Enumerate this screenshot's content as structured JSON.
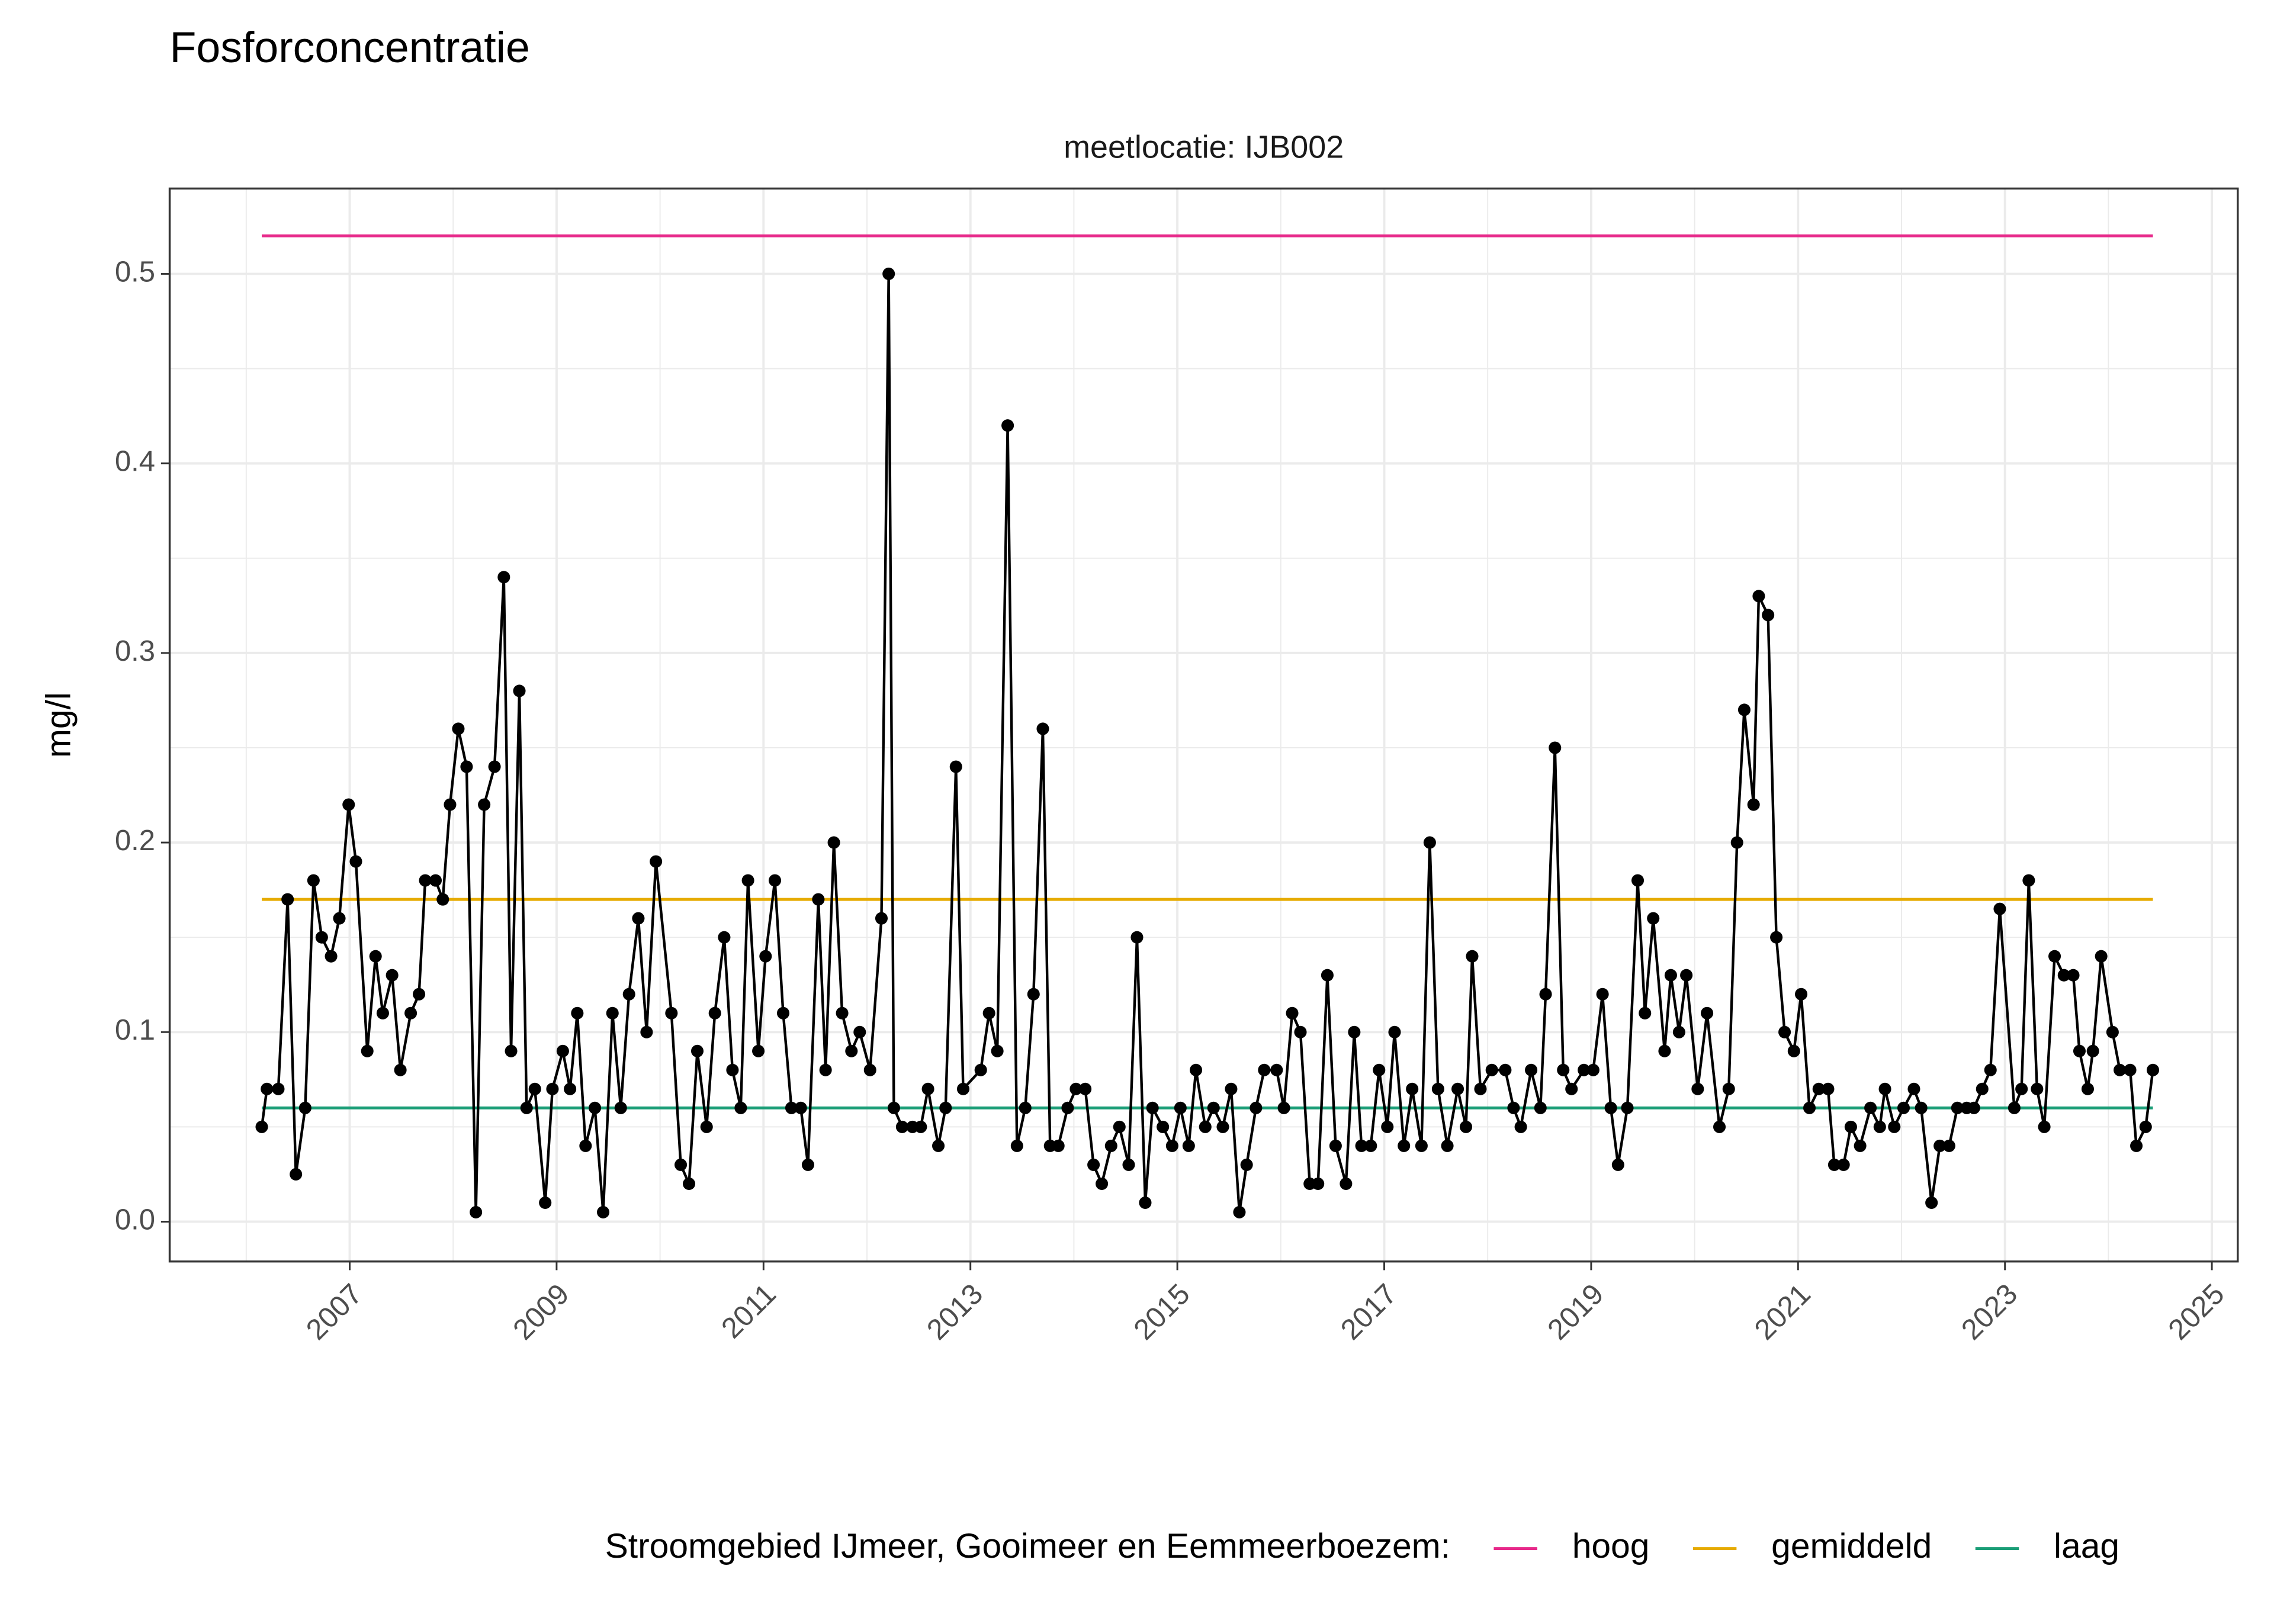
{
  "chart_data": {
    "type": "line",
    "title": "Fosforconcentratie",
    "facet_label": "meetlocatie: IJB002",
    "y_label": "mg/l",
    "legend_title": "Stroomgebied IJmeer, Gooimeer en Eemmeerboezem:",
    "legend_position": "bottom",
    "grid": true,
    "color": "#000000",
    "xlim": [
      2005.26,
      2025.25
    ],
    "xticks": [
      2007,
      2009,
      2011,
      2013,
      2015,
      2017,
      2019,
      2021,
      2023,
      2025
    ],
    "ylim": [
      -0.021,
      0.545
    ],
    "yticks": [
      {
        "value": 0,
        "label": "0.0"
      },
      0.1,
      0.2,
      0.3,
      0.4,
      0.5
    ],
    "x": [
      2006.15,
      2006.2,
      2006.31,
      2006.4,
      2006.48,
      2006.57,
      2006.65,
      2006.73,
      2006.82,
      2006.9,
      2006.99,
      2007.06,
      2007.17,
      2007.25,
      2007.32,
      2007.41,
      2007.49,
      2007.59,
      2007.67,
      2007.73,
      2007.83,
      2007.9,
      2007.97,
      2008.05,
      2008.13,
      2008.22,
      2008.3,
      2008.4,
      2008.49,
      2008.56,
      2008.64,
      2008.71,
      2008.79,
      2008.89,
      2008.96,
      2009.06,
      2009.13,
      2009.2,
      2009.28,
      2009.37,
      2009.45,
      2009.54,
      2009.62,
      2009.7,
      2009.79,
      2009.87,
      2009.96,
      2010.11,
      2010.2,
      2010.28,
      2010.36,
      2010.45,
      2010.53,
      2010.62,
      2010.7,
      2010.78,
      2010.85,
      2010.95,
      2011.02,
      2011.11,
      2011.19,
      2011.27,
      2011.36,
      2011.43,
      2011.53,
      2011.6,
      2011.68,
      2011.76,
      2011.85,
      2011.93,
      2012.03,
      2012.14,
      2012.21,
      2012.26,
      2012.34,
      2012.44,
      2012.52,
      2012.59,
      2012.69,
      2012.76,
      2012.86,
      2012.93,
      2013.1,
      2013.18,
      2013.26,
      2013.36,
      2013.45,
      2013.53,
      2013.61,
      2013.7,
      2013.77,
      2013.85,
      2013.94,
      2014.02,
      2014.11,
      2014.19,
      2014.27,
      2014.36,
      2014.44,
      2014.53,
      2014.61,
      2014.69,
      2014.76,
      2014.86,
      2014.95,
      2015.03,
      2015.11,
      2015.18,
      2015.27,
      2015.35,
      2015.44,
      2015.52,
      2015.6,
      2015.67,
      2015.76,
      2015.84,
      2015.96,
      2016.03,
      2016.11,
      2016.19,
      2016.28,
      2016.36,
      2016.45,
      2016.53,
      2016.63,
      2016.71,
      2016.78,
      2016.87,
      2016.95,
      2017.03,
      2017.1,
      2017.19,
      2017.27,
      2017.36,
      2017.44,
      2017.52,
      2017.61,
      2017.71,
      2017.79,
      2017.85,
      2017.93,
      2018.04,
      2018.17,
      2018.25,
      2018.32,
      2018.42,
      2018.51,
      2018.56,
      2018.65,
      2018.73,
      2018.81,
      2018.93,
      2019.02,
      2019.11,
      2019.19,
      2019.26,
      2019.35,
      2019.45,
      2019.52,
      2019.6,
      2019.71,
      2019.77,
      2019.85,
      2019.92,
      2020.03,
      2020.12,
      2020.24,
      2020.33,
      2020.41,
      2020.48,
      2020.57,
      2020.62,
      2020.71,
      2020.79,
      2020.87,
      2020.96,
      2021.03,
      2021.11,
      2021.2,
      2021.29,
      2021.35,
      2021.44,
      2021.51,
      2021.6,
      2021.7,
      2021.79,
      2021.84,
      2021.93,
      2022.02,
      2022.12,
      2022.19,
      2022.29,
      2022.37,
      2022.46,
      2022.54,
      2022.63,
      2022.7,
      2022.78,
      2022.86,
      2022.95,
      2023.09,
      2023.16,
      2023.23,
      2023.31,
      2023.38,
      2023.48,
      2023.57,
      2023.66,
      2023.72,
      2023.8,
      2023.85,
      2023.93,
      2024.04,
      2024.11,
      2024.21,
      2024.27,
      2024.36,
      2024.43
    ],
    "values": [
      0.05,
      0.07,
      0.07,
      0.17,
      0.025,
      0.06,
      0.18,
      0.15,
      0.14,
      0.16,
      0.22,
      0.19,
      0.09,
      0.14,
      0.11,
      0.13,
      0.08,
      0.11,
      0.12,
      0.18,
      0.18,
      0.17,
      0.22,
      0.26,
      0.24,
      0.005,
      0.22,
      0.24,
      0.34,
      0.09,
      0.28,
      0.06,
      0.07,
      0.01,
      0.07,
      0.09,
      0.07,
      0.11,
      0.04,
      0.06,
      0.005,
      0.11,
      0.06,
      0.12,
      0.16,
      0.1,
      0.19,
      0.11,
      0.03,
      0.02,
      0.09,
      0.05,
      0.11,
      0.15,
      0.08,
      0.06,
      0.18,
      0.09,
      0.14,
      0.18,
      0.11,
      0.06,
      0.06,
      0.03,
      0.17,
      0.08,
      0.2,
      0.11,
      0.09,
      0.1,
      0.08,
      0.16,
      0.5,
      0.06,
      0.05,
      0.05,
      0.05,
      0.07,
      0.04,
      0.06,
      0.24,
      0.07,
      0.08,
      0.11,
      0.09,
      0.42,
      0.04,
      0.06,
      0.12,
      0.26,
      0.04,
      0.04,
      0.06,
      0.07,
      0.07,
      0.03,
      0.02,
      0.04,
      0.05,
      0.03,
      0.15,
      0.01,
      0.06,
      0.05,
      0.04,
      0.06,
      0.04,
      0.08,
      0.05,
      0.06,
      0.05,
      0.07,
      0.005,
      0.03,
      0.06,
      0.08,
      0.08,
      0.06,
      0.11,
      0.1,
      0.02,
      0.02,
      0.13,
      0.04,
      0.02,
      0.1,
      0.04,
      0.04,
      0.08,
      0.05,
      0.1,
      0.04,
      0.07,
      0.04,
      0.2,
      0.07,
      0.04,
      0.07,
      0.05,
      0.14,
      0.07,
      0.08,
      0.08,
      0.06,
      0.05,
      0.08,
      0.06,
      0.12,
      0.25,
      0.08,
      0.07,
      0.08,
      0.08,
      0.12,
      0.06,
      0.03,
      0.06,
      0.18,
      0.11,
      0.16,
      0.09,
      0.13,
      0.1,
      0.13,
      0.07,
      0.11,
      0.05,
      0.07,
      0.2,
      0.27,
      0.22,
      0.33,
      0.32,
      0.15,
      0.1,
      0.09,
      0.12,
      0.06,
      0.07,
      0.07,
      0.03,
      0.03,
      0.05,
      0.04,
      0.06,
      0.05,
      0.07,
      0.05,
      0.06,
      0.07,
      0.06,
      0.01,
      0.04,
      0.04,
      0.06,
      0.06,
      0.06,
      0.07,
      0.08,
      0.165,
      0.06,
      0.07,
      0.18,
      0.07,
      0.05,
      0.14,
      0.13,
      0.13,
      0.09,
      0.07,
      0.09,
      0.14,
      0.1,
      0.08,
      0.08,
      0.04,
      0.05,
      0.08
    ],
    "reference_lines": [
      {
        "name": "hoog",
        "color": "#e7298a",
        "x": [
          2006.15,
          2024.43
        ],
        "values": [
          0.52,
          0.52
        ]
      },
      {
        "name": "gemiddeld",
        "color": "#e6ab02",
        "x": [
          2006.15,
          2024.43
        ],
        "values": [
          0.17,
          0.17
        ]
      },
      {
        "name": "laag",
        "color": "#1b9e77",
        "x": [
          2006.15,
          2024.43
        ],
        "values": [
          0.06,
          0.06
        ]
      }
    ]
  }
}
